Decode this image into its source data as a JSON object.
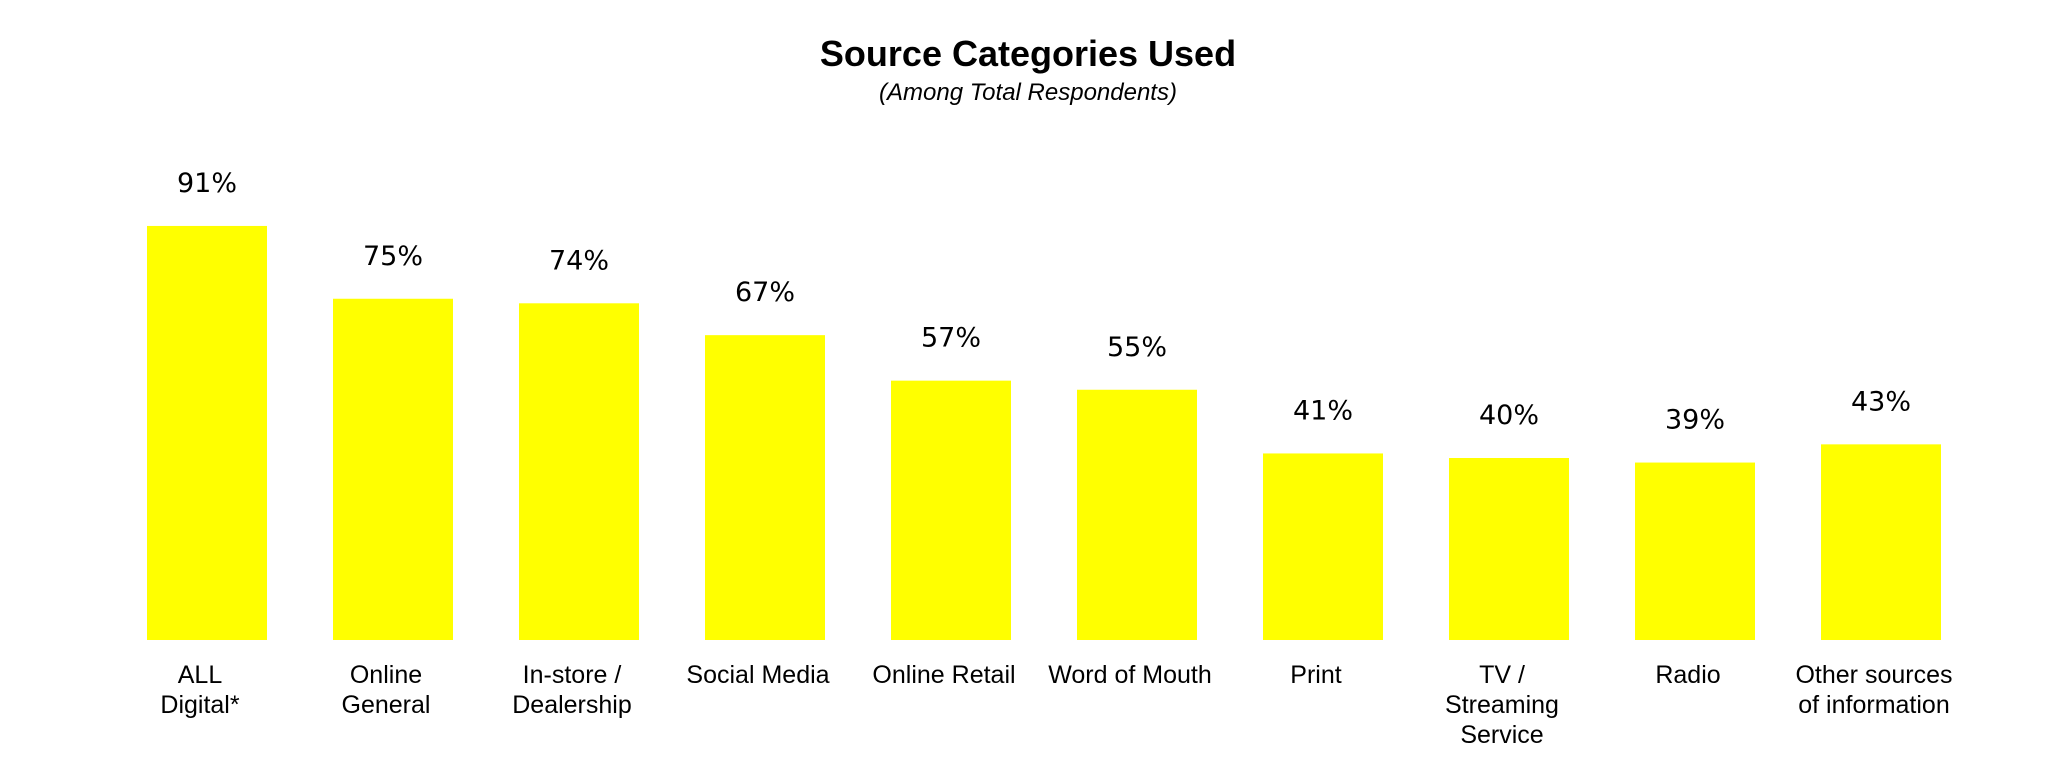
{
  "chart_data": {
    "type": "bar",
    "title": "Source Categories Used",
    "subtitle": "(Among Total Respondents)",
    "categories": [
      "ALL\nDigital*",
      "Online\nGeneral",
      "In-store /\nDealership",
      "Social Media",
      "Online Retail",
      "Word of Mouth",
      "Print",
      "TV /\nStreaming\nService",
      "Radio",
      "Other sources\nof information"
    ],
    "values": [
      91,
      75,
      74,
      67,
      57,
      55,
      41,
      40,
      39,
      43
    ],
    "value_labels": [
      "91%",
      "75%",
      "74%",
      "67%",
      "57%",
      "55%",
      "41%",
      "40%",
      "39%",
      "43%"
    ],
    "unit": "%",
    "ylim": [
      0,
      100
    ],
    "grid": false,
    "legend": "none",
    "bar_color": "#FFFF00"
  }
}
